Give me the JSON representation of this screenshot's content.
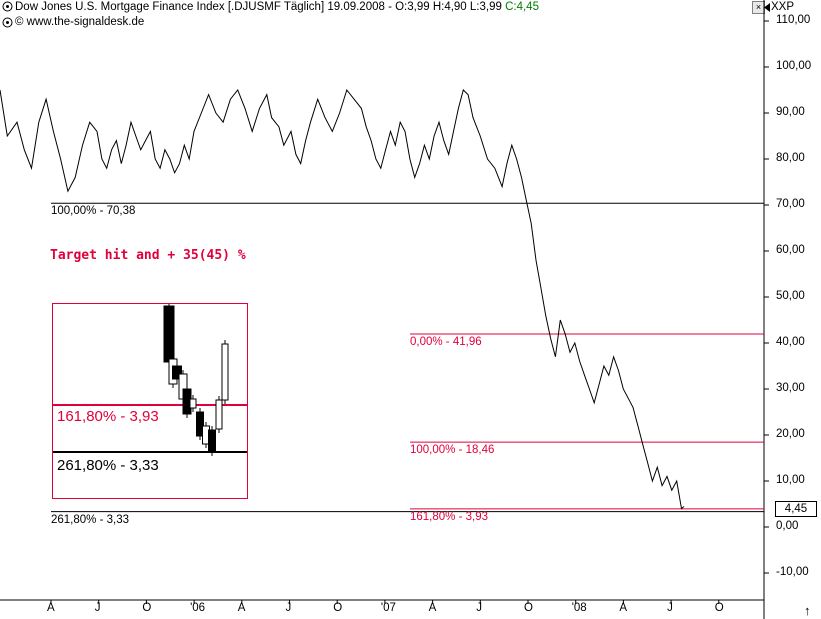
{
  "window": {
    "title_main": "Dow Jones U.S. Mortgage Finance Index [.DJUSMF  Täglich] 19.09.2008 - O:3,99 H:4,90 L:3,99",
    "title_close": "C:4,45",
    "subtitle": "© www.the-signaldesk.de",
    "close_glyph": "×",
    "scale_code": "XXP",
    "last_price": "4,45",
    "scroll_glyph": "↑"
  },
  "colors": {
    "fib_red": "#e0003c",
    "price_line": "#000000",
    "close_green": "#008000"
  },
  "chart_data": {
    "type": "line",
    "title": "Dow Jones U.S. Mortgage Finance Index [.DJUSMF  Täglich]",
    "ylim": [
      -15,
      114
    ],
    "y_ticks": [
      "110,00",
      "100,00",
      "90,00",
      "80,00",
      "70,00",
      "60,00",
      "50,00",
      "40,00",
      "30,00",
      "20,00",
      "10,00",
      "0,00",
      "-10,00"
    ],
    "x_ticks": [
      "A",
      "J",
      "O",
      "'06",
      "A",
      "J",
      "O",
      "'07",
      "A",
      "J",
      "O",
      "'08",
      "A",
      "J",
      "O"
    ],
    "grid": false,
    "series": [
      {
        "points": [
          [
            0,
            95
          ],
          [
            3,
            85
          ],
          [
            7,
            88
          ],
          [
            10,
            82
          ],
          [
            13,
            78
          ],
          [
            16,
            88
          ],
          [
            19,
            93
          ],
          [
            22,
            86
          ],
          [
            25,
            80
          ],
          [
            28,
            73
          ],
          [
            31,
            76
          ],
          [
            34,
            83
          ],
          [
            37,
            88
          ],
          [
            40,
            86
          ],
          [
            42,
            80
          ],
          [
            44,
            78
          ],
          [
            46,
            82
          ],
          [
            48,
            84
          ],
          [
            50,
            79
          ],
          [
            52,
            83
          ],
          [
            54,
            88
          ],
          [
            56,
            85
          ],
          [
            58,
            82
          ],
          [
            60,
            84
          ],
          [
            62,
            86
          ],
          [
            64,
            80
          ],
          [
            66,
            78
          ],
          [
            68,
            82
          ],
          [
            70,
            80
          ],
          [
            72,
            77
          ],
          [
            74,
            79
          ],
          [
            76,
            83
          ],
          [
            78,
            80
          ],
          [
            80,
            86
          ],
          [
            83,
            90
          ],
          [
            86,
            94
          ],
          [
            89,
            90
          ],
          [
            92,
            88
          ],
          [
            95,
            93
          ],
          [
            98,
            95
          ],
          [
            101,
            91
          ],
          [
            104,
            86
          ],
          [
            107,
            91
          ],
          [
            110,
            94
          ],
          [
            112,
            89
          ],
          [
            115,
            87
          ],
          [
            117,
            83
          ],
          [
            120,
            86
          ],
          [
            122,
            81
          ],
          [
            124,
            79
          ],
          [
            126,
            84
          ],
          [
            128,
            88
          ],
          [
            131,
            93
          ],
          [
            134,
            89
          ],
          [
            137,
            86
          ],
          [
            140,
            90
          ],
          [
            143,
            95
          ],
          [
            146,
            93
          ],
          [
            149,
            91
          ],
          [
            151,
            87
          ],
          [
            153,
            84
          ],
          [
            155,
            80
          ],
          [
            157,
            78
          ],
          [
            159,
            82
          ],
          [
            161,
            86
          ],
          [
            163,
            83
          ],
          [
            165,
            88
          ],
          [
            167,
            86
          ],
          [
            169,
            80
          ],
          [
            171,
            76
          ],
          [
            173,
            79
          ],
          [
            175,
            83
          ],
          [
            177,
            80
          ],
          [
            179,
            85
          ],
          [
            181,
            88
          ],
          [
            183,
            84
          ],
          [
            185,
            81
          ],
          [
            187,
            86
          ],
          [
            189,
            91
          ],
          [
            191,
            95
          ],
          [
            193,
            94
          ],
          [
            195,
            89
          ],
          [
            198,
            85
          ],
          [
            201,
            80
          ],
          [
            204,
            78
          ],
          [
            207,
            74
          ],
          [
            209,
            79
          ],
          [
            211,
            83
          ],
          [
            213,
            80
          ],
          [
            215,
            76
          ],
          [
            217,
            71
          ],
          [
            219,
            66
          ],
          [
            221,
            58
          ],
          [
            223,
            52
          ],
          [
            225,
            46
          ],
          [
            227,
            41
          ],
          [
            229,
            37
          ],
          [
            231,
            45
          ],
          [
            233,
            42
          ],
          [
            235,
            38
          ],
          [
            237,
            40
          ],
          [
            239,
            36
          ],
          [
            241,
            33
          ],
          [
            243,
            30
          ],
          [
            245,
            27
          ],
          [
            247,
            31
          ],
          [
            249,
            35
          ],
          [
            251,
            33
          ],
          [
            253,
            37
          ],
          [
            255,
            34
          ],
          [
            257,
            30
          ],
          [
            259,
            28
          ],
          [
            261,
            26
          ],
          [
            263,
            22
          ],
          [
            265,
            18
          ],
          [
            267,
            14
          ],
          [
            269,
            10
          ],
          [
            271,
            13
          ],
          [
            273,
            9
          ],
          [
            275,
            11
          ],
          [
            277,
            8
          ],
          [
            279,
            10
          ],
          [
            281,
            4
          ],
          [
            282,
            4.45
          ]
        ]
      }
    ],
    "x_domain": [
      0,
      315
    ],
    "levels": [
      {
        "label": "100,00% - 70,38",
        "value": 70.38,
        "color": "black",
        "span": "full"
      },
      {
        "label": "0,00% - 41,96",
        "value": 41.96,
        "color": "red",
        "span": "right"
      },
      {
        "label": "100,00% - 18,46",
        "value": 18.46,
        "color": "red",
        "span": "right"
      },
      {
        "label": "161,80% - 3,93",
        "value": 3.93,
        "color": "red",
        "span": "right"
      },
      {
        "label": "261,80% - 3,33",
        "value": 3.33,
        "color": "black",
        "span": "full"
      }
    ],
    "annotations": [
      "Target hit and + 35(45) %"
    ],
    "inset": {
      "label_a": "161,80% - 3,93",
      "label_b": "261,80% - 3,33"
    }
  }
}
